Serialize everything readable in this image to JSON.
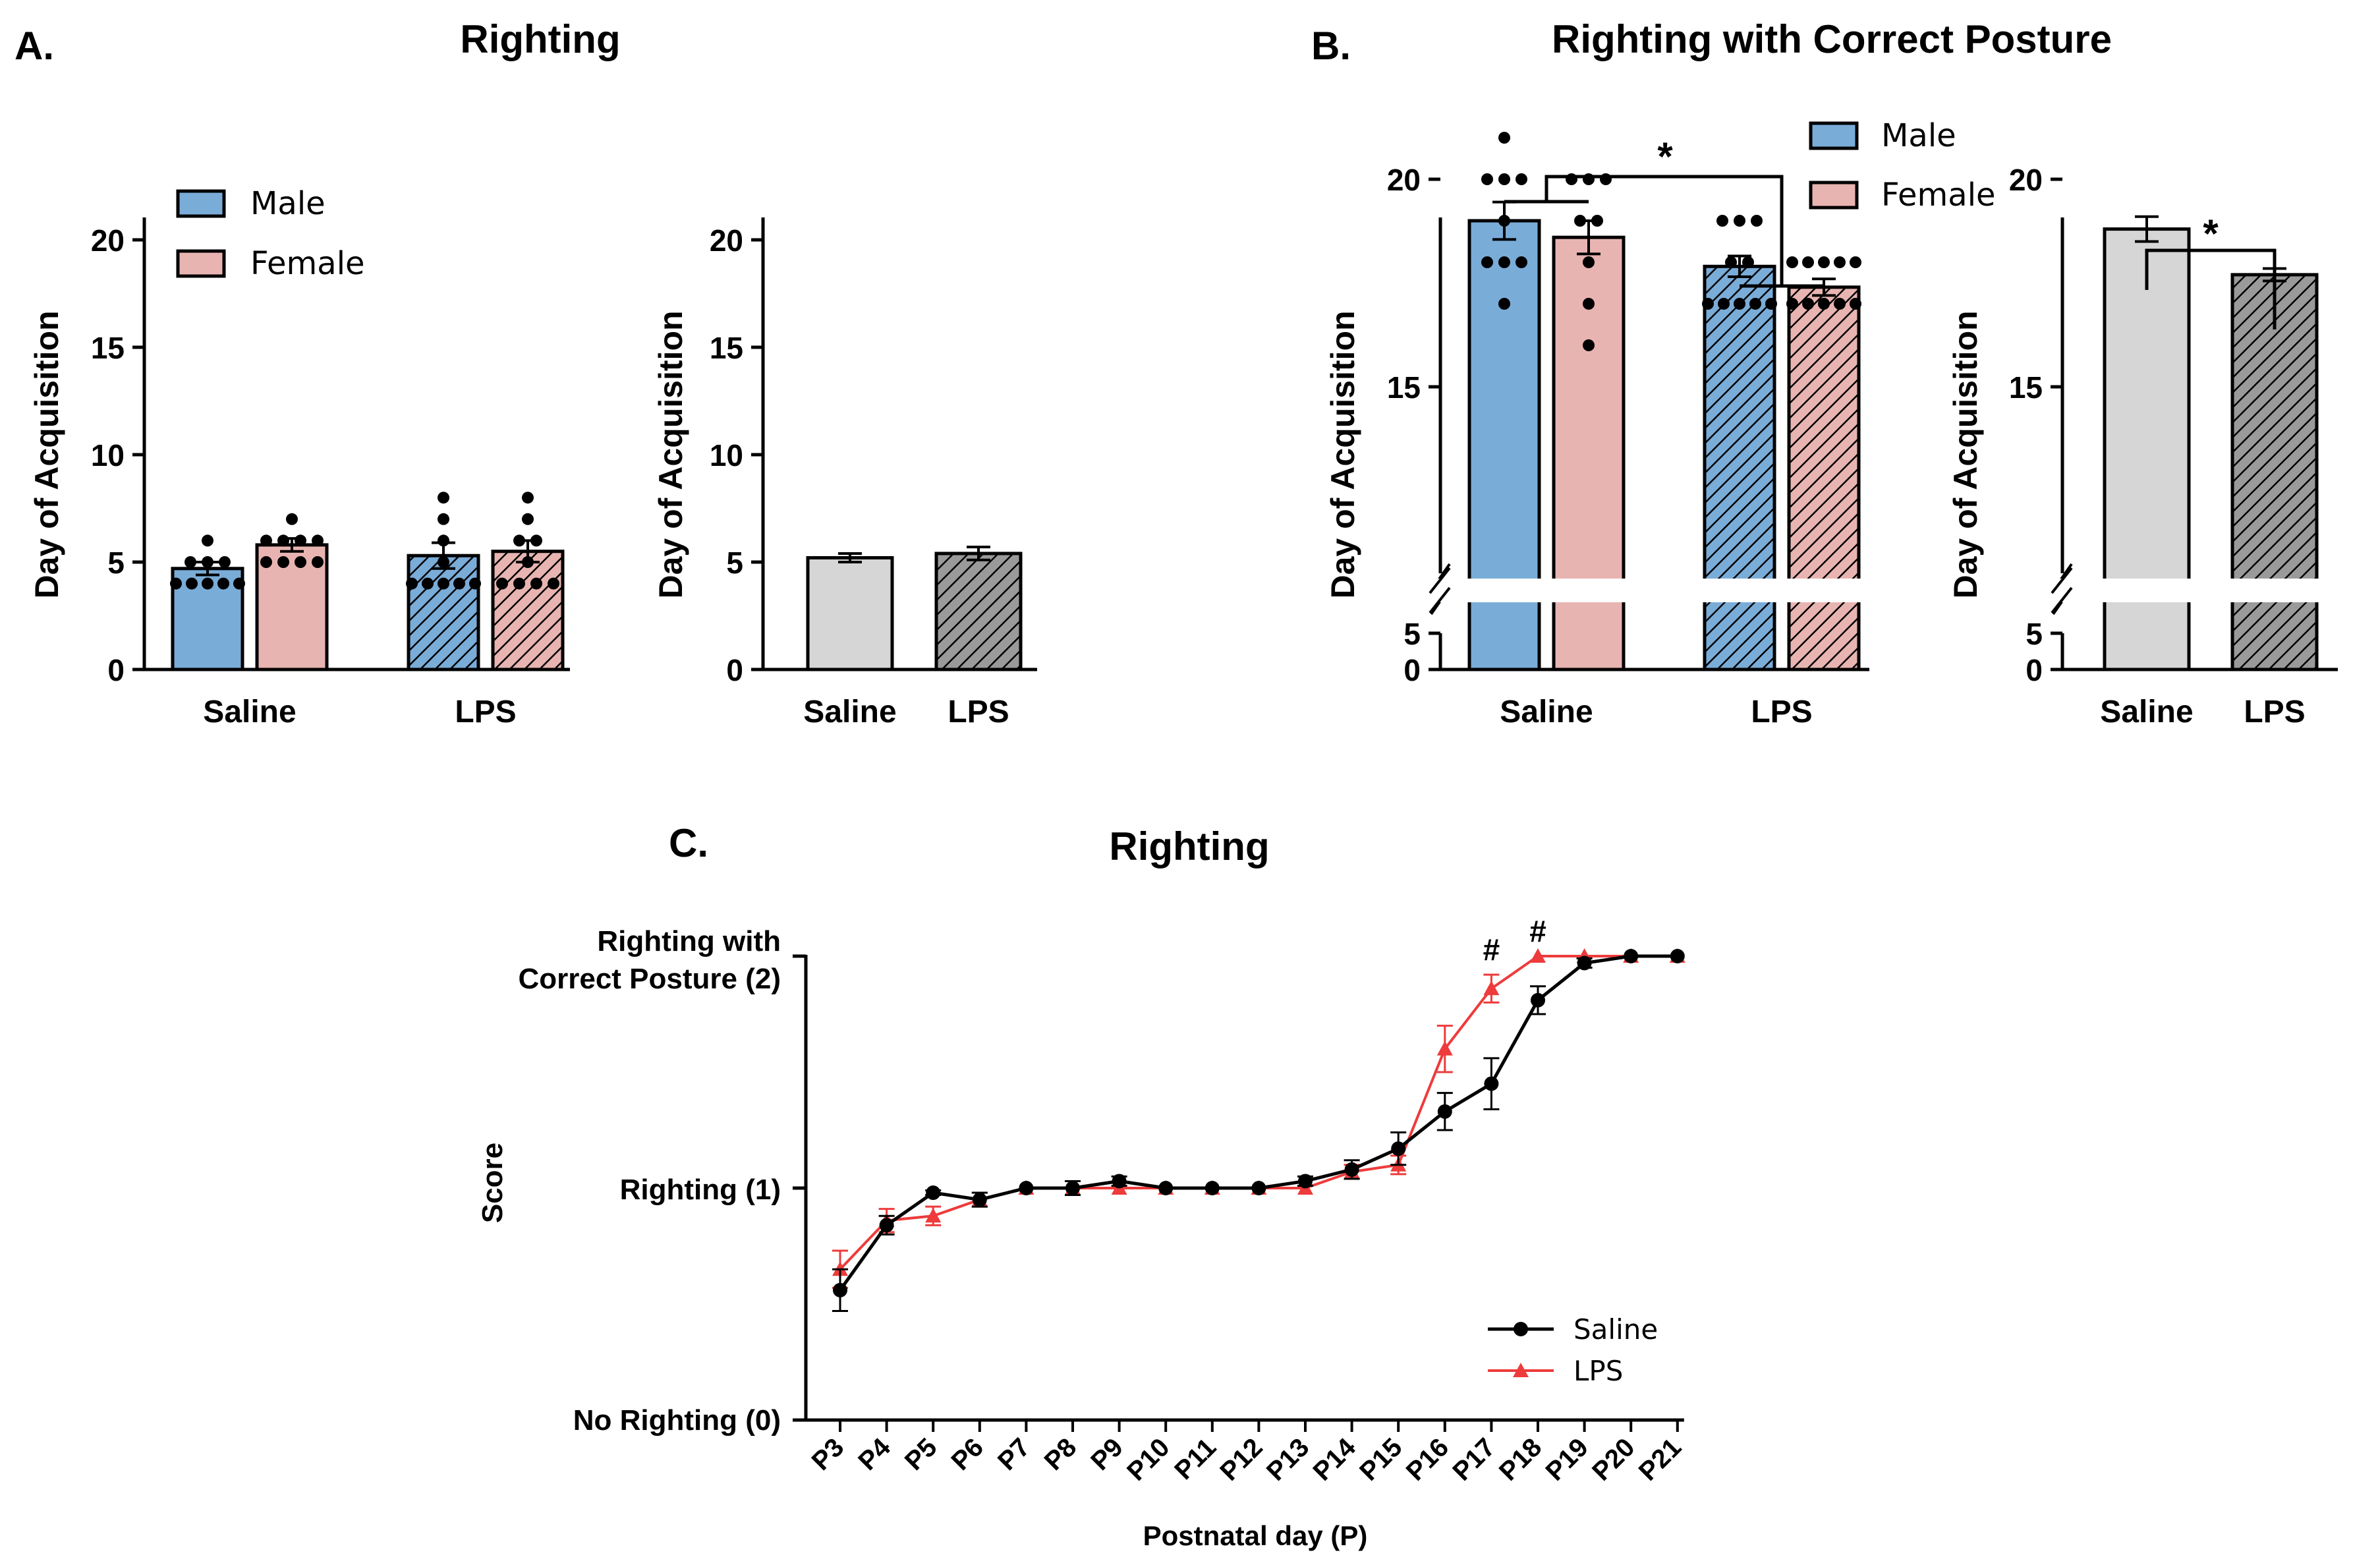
{
  "panel_labels": {
    "a": "A.",
    "b": "B.",
    "c": "C."
  },
  "colors": {
    "male": "#7aacd8",
    "female": "#e8b4b1",
    "pooled_saline": "#d6d6d6",
    "pooled_lps": "#9a9a9a",
    "saline_line": "#000000",
    "lps_line": "#ee3b3b",
    "axis": "#000000"
  },
  "chart_data": [
    {
      "id": "A1",
      "type": "bar",
      "title": "Righting",
      "xlabel": "",
      "ylabel": "Day of Acquisition",
      "ylim": [
        0,
        21
      ],
      "yticks": [
        "0",
        "5",
        "10",
        "15",
        "20"
      ],
      "categories": [
        "Saline",
        "LPS"
      ],
      "series": [
        {
          "name": "Male",
          "values": [
            4.7,
            5.3
          ],
          "sem": [
            0.3,
            0.6
          ]
        },
        {
          "name": "Female",
          "values": [
            5.8,
            5.5
          ],
          "sem": [
            0.3,
            0.5
          ]
        }
      ],
      "points": [
        [
          4,
          4,
          4,
          4,
          4,
          5,
          5,
          5,
          6
        ],
        [
          5,
          5,
          5,
          5,
          6,
          6,
          6,
          6,
          7
        ],
        [
          4,
          4,
          4,
          4,
          4,
          5,
          6,
          7,
          8
        ],
        [
          4,
          4,
          4,
          4,
          5,
          6,
          6,
          7,
          8
        ]
      ],
      "legend": [
        "Male",
        "Female"
      ],
      "legend_position": "top-left"
    },
    {
      "id": "A2",
      "type": "bar",
      "title": "",
      "xlabel": "",
      "ylabel": "Day of Acquisition",
      "ylim": [
        0,
        21
      ],
      "yticks": [
        "0",
        "5",
        "10",
        "15",
        "20"
      ],
      "categories": [
        "Saline",
        "LPS"
      ],
      "values": [
        5.2,
        5.4
      ],
      "sem": [
        0.2,
        0.3
      ]
    },
    {
      "id": "B1",
      "type": "bar",
      "title": "Righting with Correct Posture",
      "xlabel": "",
      "ylabel": "Day of Acquisition",
      "ylim": [
        0,
        21
      ],
      "axis_break": [
        5,
        13
      ],
      "yticks": [
        "0",
        "5",
        "15",
        "20"
      ],
      "categories": [
        "Saline",
        "LPS"
      ],
      "series": [
        {
          "name": "Male",
          "values": [
            19.0,
            17.9
          ],
          "sem": [
            0.45,
            0.25
          ]
        },
        {
          "name": "Female",
          "values": [
            18.6,
            17.4
          ],
          "sem": [
            0.4,
            0.2
          ]
        }
      ],
      "points": [
        [
          17,
          18,
          18,
          18,
          19,
          20,
          20,
          20,
          21
        ],
        [
          16,
          17,
          18,
          19,
          19,
          20,
          20,
          20
        ],
        [
          17,
          17,
          17,
          17,
          17,
          18,
          18,
          19,
          19,
          19
        ],
        [
          17,
          17,
          17,
          17,
          17,
          18,
          18,
          18,
          18,
          18
        ]
      ],
      "legend": [
        "Male",
        "Female"
      ],
      "legend_position": "top-right",
      "significance": "*"
    },
    {
      "id": "B2",
      "type": "bar",
      "title": "",
      "xlabel": "",
      "ylabel": "Day of Acquisition",
      "ylim": [
        0,
        21
      ],
      "axis_break": [
        5,
        13
      ],
      "yticks": [
        "0",
        "5",
        "15",
        "20"
      ],
      "categories": [
        "Saline",
        "LPS"
      ],
      "values": [
        18.8,
        17.7
      ],
      "sem": [
        0.3,
        0.15
      ],
      "significance": "*"
    },
    {
      "id": "C",
      "type": "line",
      "title": "Righting",
      "xlabel": "Postnatal day (P)",
      "ylabel": "Score",
      "ylim": [
        0,
        2
      ],
      "ytick_labels": [
        "No Righting (0)",
        "Righting (1)",
        "Righting with",
        "Correct Posture (2)"
      ],
      "x": [
        "P3",
        "P4",
        "P5",
        "P6",
        "P7",
        "P8",
        "P9",
        "P10",
        "P11",
        "P12",
        "P13",
        "P14",
        "P15",
        "P16",
        "P17",
        "P18",
        "P19",
        "P20",
        "P21"
      ],
      "series": [
        {
          "name": "Saline",
          "values": [
            0.56,
            0.84,
            0.98,
            0.95,
            1.0,
            1.0,
            1.03,
            1.0,
            1.0,
            1.0,
            1.03,
            1.08,
            1.17,
            1.33,
            1.45,
            1.81,
            1.97,
            2.0,
            2.0
          ],
          "sem": [
            0.09,
            0.04,
            0.01,
            0.03,
            0.0,
            0.03,
            0.02,
            0.0,
            0.0,
            0.0,
            0.02,
            0.04,
            0.07,
            0.08,
            0.11,
            0.06,
            0.02,
            0.0,
            0.0
          ]
        },
        {
          "name": "LPS",
          "values": [
            0.65,
            0.86,
            0.88,
            0.95,
            1.0,
            1.0,
            1.0,
            1.0,
            1.0,
            1.0,
            1.0,
            1.07,
            1.1,
            1.6,
            1.86,
            2.0,
            2.0,
            2.0,
            2.0
          ],
          "sem": [
            0.08,
            0.05,
            0.04,
            0.03,
            0.0,
            0.0,
            0.0,
            0.0,
            0.0,
            0.0,
            0.0,
            0.03,
            0.04,
            0.1,
            0.06,
            0.0,
            0.0,
            0.0,
            0.0
          ]
        }
      ],
      "annotations": [
        {
          "x": "P17",
          "text": "#"
        },
        {
          "x": "P18",
          "text": "#"
        }
      ],
      "legend": [
        "Saline",
        "LPS"
      ],
      "legend_position": "bottom-right"
    }
  ]
}
